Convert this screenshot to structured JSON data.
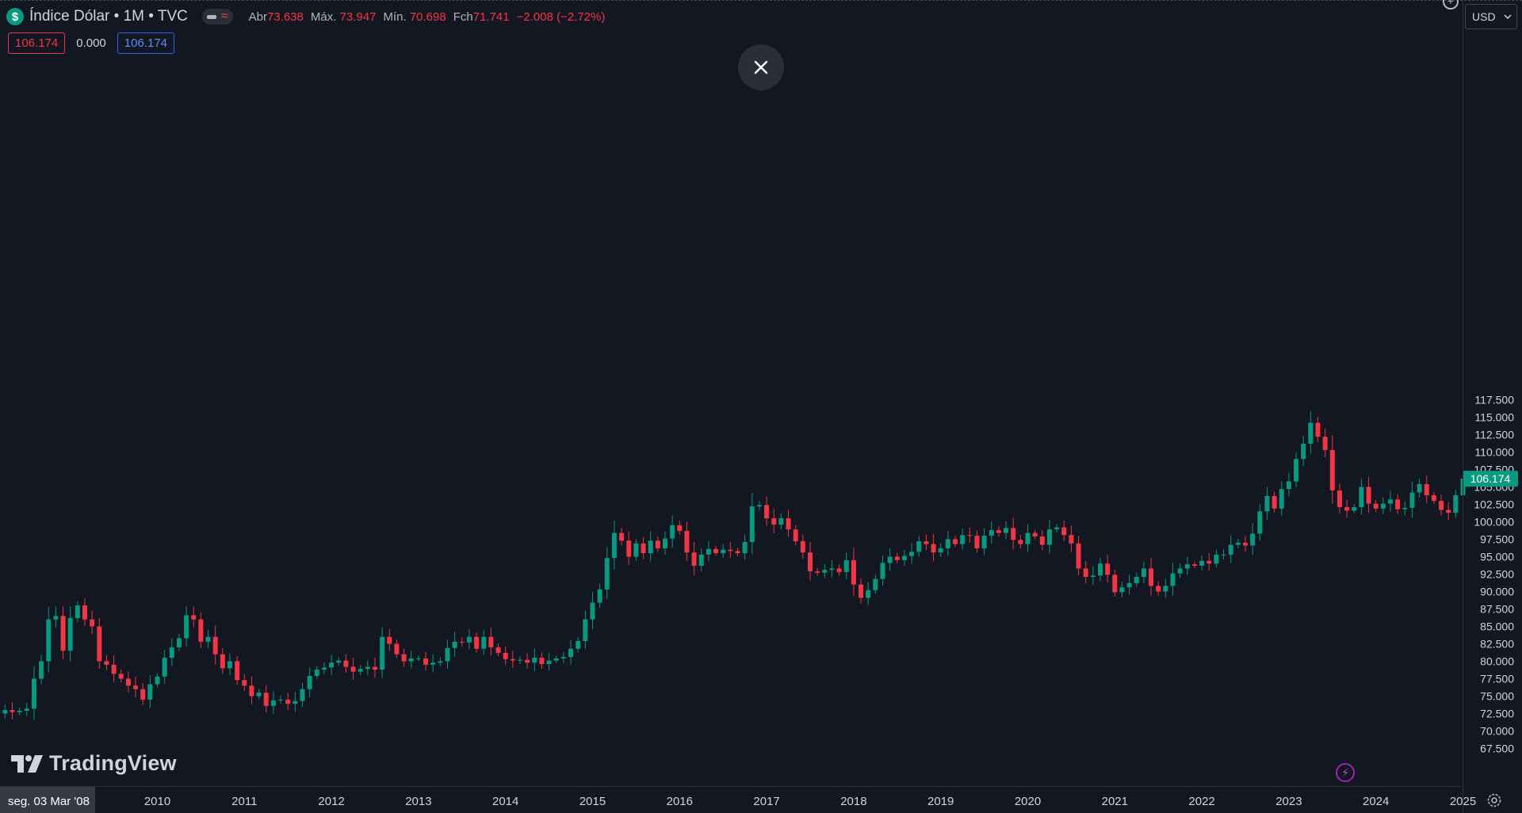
{
  "header": {
    "symbol_logo": "$",
    "title": "Índice Dólar • 1M • TVC",
    "ohlc": [
      {
        "label": "Abr",
        "value": "73.638"
      },
      {
        "label": "Máx.",
        "value": "73.947"
      },
      {
        "label": "Mín.",
        "value": "70.698"
      },
      {
        "label": "Fch",
        "value": "71.741"
      }
    ],
    "change": "−2.008 (−2.72%)"
  },
  "indicators": {
    "left": "106.174",
    "middle": "0.000",
    "right": "106.174"
  },
  "currency": {
    "label": "USD"
  },
  "watermark": {
    "text": "TradingView"
  },
  "crosshair_date": "seg. 03 Mar '08",
  "colors": {
    "up": "#089981",
    "down": "#f23645",
    "background": "#131722",
    "price_label": "#089981"
  },
  "icons": {
    "close": "close-icon",
    "flash": "lightning-icon",
    "settings": "gear-icon",
    "plus": "plus-circle-icon",
    "logo": "tradingview-logo-icon"
  },
  "chart_data": {
    "type": "candlestick",
    "interval": "1M",
    "title": "Índice Dólar • 1M • TVC",
    "xlabel": "",
    "ylabel": "",
    "ylim": [
      66.5,
      118
    ],
    "last_price": "106.174",
    "y_ticks": [
      "67.500",
      "70.000",
      "72.500",
      "75.000",
      "77.500",
      "80.000",
      "82.500",
      "85.000",
      "87.500",
      "90.000",
      "92.500",
      "95.000",
      "97.500",
      "100.000",
      "102.500",
      "105.000",
      "107.500",
      "110.000",
      "112.500",
      "115.000",
      "117.500"
    ],
    "x_ticks": [
      {
        "label": "2010",
        "t": 2010
      },
      {
        "label": "2011",
        "t": 2011
      },
      {
        "label": "2012",
        "t": 2012
      },
      {
        "label": "2013",
        "t": 2013
      },
      {
        "label": "2014",
        "t": 2014
      },
      {
        "label": "2015",
        "t": 2015
      },
      {
        "label": "2016",
        "t": 2016
      },
      {
        "label": "2017",
        "t": 2017
      },
      {
        "label": "2018",
        "t": 2018
      },
      {
        "label": "2019",
        "t": 2019
      },
      {
        "label": "2020",
        "t": 2020
      },
      {
        "label": "2021",
        "t": 2021
      },
      {
        "label": "2022",
        "t": 2022
      },
      {
        "label": "2023",
        "t": 2023
      },
      {
        "label": "2024",
        "t": 2024
      },
      {
        "label": "2025",
        "t": 2025
      }
    ],
    "first_month": "2008-03",
    "closes": [
      72.5,
      73.0,
      72.7,
      72.9,
      73.2,
      77.5,
      80.0,
      86.0,
      86.5,
      81.5,
      86.2,
      88.0,
      86.0,
      85.0,
      80.0,
      79.5,
      78.2,
      77.5,
      76.5,
      76.0,
      74.5,
      76.7,
      77.8,
      80.5,
      82.0,
      83.3,
      86.6,
      86.0,
      82.8,
      83.5,
      81.0,
      79.0,
      80.0,
      77.3,
      76.5,
      75.0,
      75.5,
      73.6,
      74.4,
      74.5,
      73.9,
      74.3,
      76.0,
      77.9,
      78.8,
      79.1,
      79.8,
      80.1,
      79.2,
      78.5,
      78.9,
      79.2,
      78.8,
      83.5,
      82.5,
      81.0,
      80.0,
      80.4,
      80.4,
      79.5,
      79.8,
      80.0,
      81.9,
      82.8,
      82.7,
      83.5,
      81.8,
      83.5,
      82.0,
      81.2,
      80.3,
      80.1,
      80.2,
      79.8,
      80.5,
      79.6,
      80.1,
      80.4,
      80.6,
      81.8,
      82.9,
      86.0,
      88.4,
      90.3,
      94.8,
      98.4,
      97.3,
      95.0,
      96.9,
      95.5,
      97.3,
      96.2,
      97.6,
      99.5,
      98.7,
      95.6,
      93.7,
      95.3,
      96.1,
      95.5,
      96.0,
      95.8,
      95.5,
      97.1,
      102.2,
      102.4,
      100.5,
      99.6,
      100.5,
      98.9,
      97.2,
      95.6,
      92.9,
      92.7,
      93.1,
      93.3,
      92.8,
      94.5,
      91.0,
      89.1,
      90.2,
      91.8,
      94.1,
      95.0,
      94.5,
      95.1,
      95.7,
      97.2,
      96.8,
      95.6,
      96.2,
      97.5,
      96.8,
      98.1,
      98.0,
      96.2,
      98.0,
      98.8,
      98.4,
      99.1,
      97.4,
      96.8,
      98.4,
      97.9,
      96.7,
      98.9,
      99.2,
      98.1,
      96.9,
      93.3,
      92.1,
      92.3,
      94.0,
      92.4,
      89.9,
      90.6,
      91.2,
      92.1,
      93.3,
      90.8,
      90.0,
      90.8,
      92.6,
      93.3,
      93.9,
      93.7,
      94.4,
      94.0,
      95.3,
      95.3,
      96.7,
      97.0,
      96.6,
      98.3,
      101.5,
      103.7,
      101.9,
      104.7,
      105.8,
      109.0,
      111.2,
      114.2,
      112.2,
      110.3,
      104.5,
      102.1,
      101.6,
      102.1,
      105.0,
      102.6,
      101.9,
      102.6,
      103.2,
      101.8,
      102.0,
      104.2,
      105.4,
      103.8,
      103.0,
      101.7,
      101.3,
      103.8,
      106.2
    ]
  }
}
